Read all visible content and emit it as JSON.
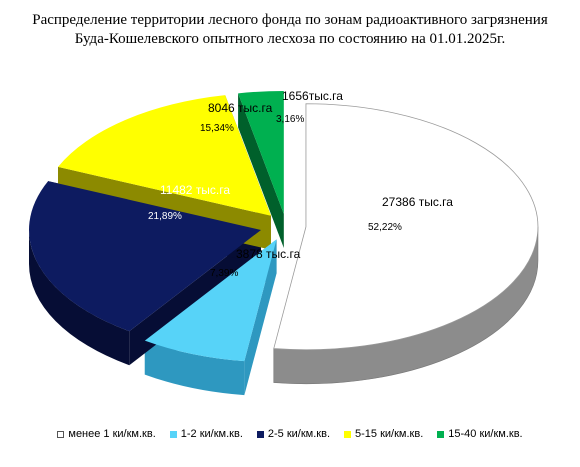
{
  "chart_data": {
    "type": "pie",
    "title": "Распределение территории лесного фонда по зонам радиоактивного загрязнения",
    "subtitle": "Буда-Кошелевского опытного лесхоза по состоянию на 01.01.2025г.",
    "legend_position": "bottom",
    "slices": [
      {
        "category": "менее 1 ки/км.кв.",
        "value": 27386,
        "value_label": "27386 тыс.га",
        "percent": 52.22,
        "percent_label": "52,22%",
        "color": "#ffffff",
        "side_color": "#8c8c8c"
      },
      {
        "category": "1-2 ки/км.кв.",
        "value": 3878,
        "value_label": "3878 тыс.га",
        "percent": 7.39,
        "percent_label": "7,39%",
        "color": "#57d3f8",
        "side_color": "#2e98c0"
      },
      {
        "category": "2-5 ки/км.кв.",
        "value": 11482,
        "value_label": "11482 тыс.га",
        "percent": 21.89,
        "percent_label": "21,89%",
        "color": "#0d1b60",
        "side_color": "#060d35"
      },
      {
        "category": "5-15 ки/км.кв.",
        "value": 8046,
        "value_label": "8046 тыс.га",
        "percent": 15.34,
        "percent_label": "15,34%",
        "color": "#ffff00",
        "side_color": "#8c8a00"
      },
      {
        "category": "15-40 ки/км.кв.",
        "value": 1656,
        "value_label": "1656тыс.га",
        "percent": 3.16,
        "percent_label": "3,16%",
        "color": "#00b050",
        "side_color": "#00602b"
      }
    ]
  }
}
